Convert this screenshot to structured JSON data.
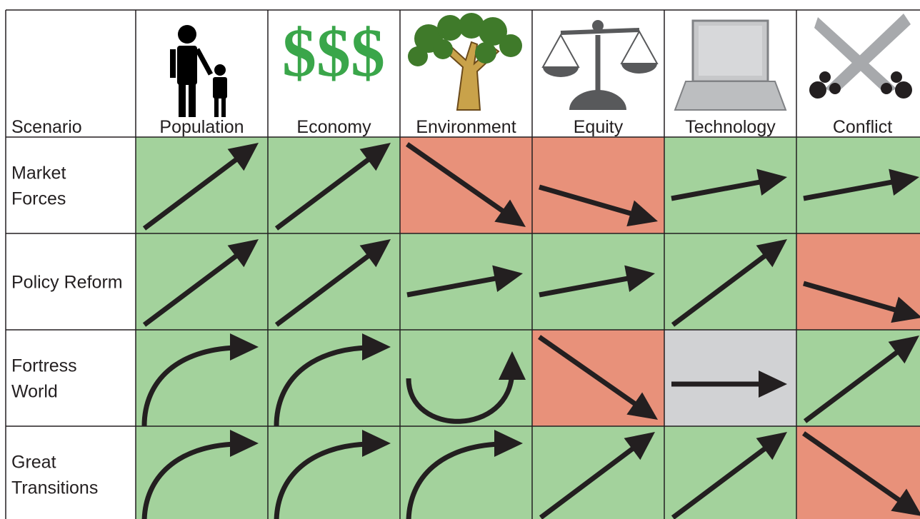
{
  "header": {
    "columns": [
      "Scenario",
      "Population",
      "Economy",
      "Environment",
      "Equity",
      "Technology",
      "Conflict"
    ],
    "economy_icon": "$$$"
  },
  "rows": [
    {
      "label": [
        "Market",
        "Forces"
      ]
    },
    {
      "label": [
        "Policy Reform"
      ]
    },
    {
      "label": [
        "Fortress",
        "World"
      ]
    },
    {
      "label": [
        "Great",
        "Transitions"
      ]
    }
  ]
}
